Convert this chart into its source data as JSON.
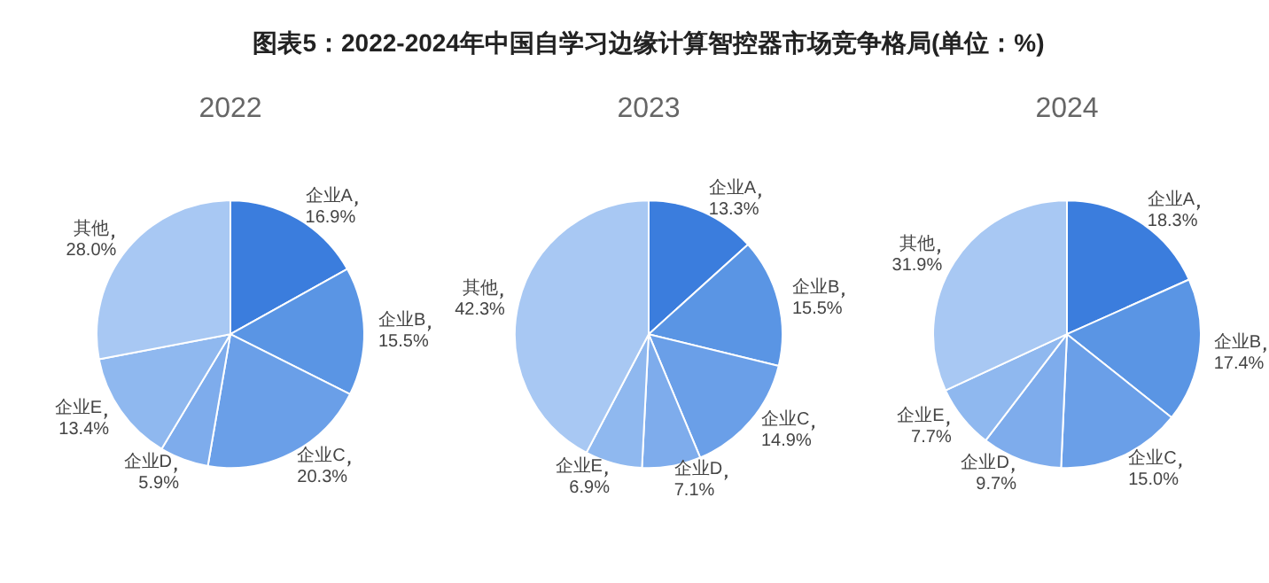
{
  "chart_data": [
    {
      "type": "pie",
      "title": "图表5：2022-2024年中国自学习边缘计算智控器市场竞争格局(单位：%)",
      "subtitle": "2022",
      "categories": [
        "企业A",
        "企业B",
        "企业C",
        "企业D",
        "企业E",
        "其他"
      ],
      "values": [
        16.9,
        15.5,
        20.3,
        5.9,
        13.4,
        28.0
      ],
      "value_labels": [
        "16.9%",
        "15.5%",
        "20.3%",
        "5.9%",
        "13.4%",
        "28.0%"
      ],
      "colors": [
        "#3b7ddd",
        "#5a95e4",
        "#6a9fe8",
        "#7eacec",
        "#8fb8ef",
        "#a8c8f3"
      ],
      "legend": false
    },
    {
      "type": "pie",
      "subtitle": "2023",
      "categories": [
        "企业A",
        "企业B",
        "企业C",
        "企业D",
        "企业E",
        "其他"
      ],
      "values": [
        13.3,
        15.5,
        14.9,
        7.1,
        6.9,
        42.3
      ],
      "value_labels": [
        "13.3%",
        "15.5%",
        "14.9%",
        "7.1%",
        "6.9%",
        "42.3%"
      ],
      "colors": [
        "#3b7ddd",
        "#5a95e4",
        "#6a9fe8",
        "#7eacec",
        "#8fb8ef",
        "#a8c8f3"
      ],
      "legend": false
    },
    {
      "type": "pie",
      "subtitle": "2024",
      "categories": [
        "企业A",
        "企业B",
        "企业C",
        "企业D",
        "企业E",
        "其他"
      ],
      "values": [
        18.3,
        17.4,
        15.0,
        9.7,
        7.7,
        31.9
      ],
      "value_labels": [
        "18.3%",
        "17.4%",
        "15.0%",
        "9.7%",
        "7.7%",
        "31.9%"
      ],
      "colors": [
        "#3b7ddd",
        "#5a95e4",
        "#6a9fe8",
        "#7eacec",
        "#8fb8ef",
        "#a8c8f3"
      ],
      "legend": false
    }
  ]
}
